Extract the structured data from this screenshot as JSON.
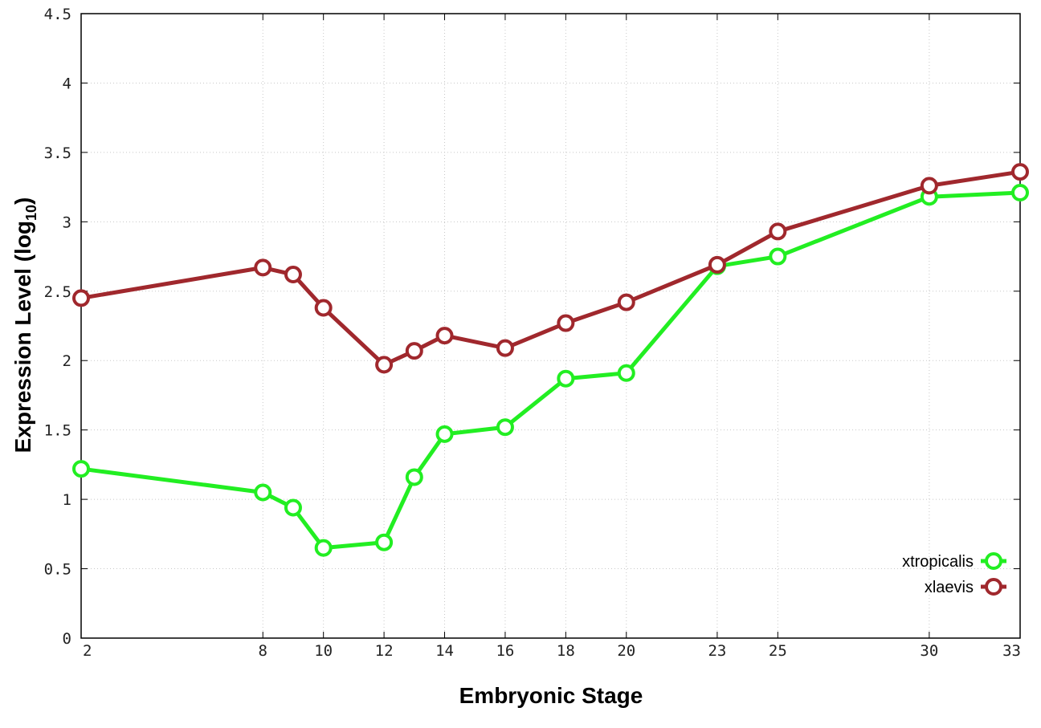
{
  "chart_data": {
    "type": "line",
    "title": "",
    "xlabel": "Embryonic Stage",
    "ylabel_main": "Expression Level (log",
    "ylabel_sub": "10",
    "ylabel_close": ")",
    "x": [
      2,
      8,
      9,
      10,
      12,
      13,
      14,
      16,
      18,
      20,
      23,
      25,
      30,
      33
    ],
    "x_ticks": [
      2,
      8,
      10,
      12,
      14,
      16,
      18,
      20,
      23,
      25,
      30,
      33
    ],
    "y_ticks": [
      "0",
      "0.5",
      "1",
      "1.5",
      "2",
      "2.5",
      "3",
      "3.5",
      "4",
      "4.5"
    ],
    "xlim": [
      2,
      33
    ],
    "ylim": [
      0,
      4.5
    ],
    "grid": true,
    "legend_position": "bottom-right",
    "series": [
      {
        "name": "xtropicalis",
        "color": "#22ee22",
        "values": [
          1.22,
          1.05,
          0.94,
          0.65,
          0.69,
          1.16,
          1.47,
          1.52,
          1.87,
          1.91,
          2.68,
          2.75,
          3.18,
          3.21
        ]
      },
      {
        "name": "xlaevis",
        "color": "#a0282d",
        "values": [
          2.45,
          2.67,
          2.62,
          2.38,
          1.97,
          2.07,
          2.18,
          2.09,
          2.27,
          2.42,
          2.69,
          2.93,
          3.26,
          3.36
        ]
      }
    ]
  }
}
